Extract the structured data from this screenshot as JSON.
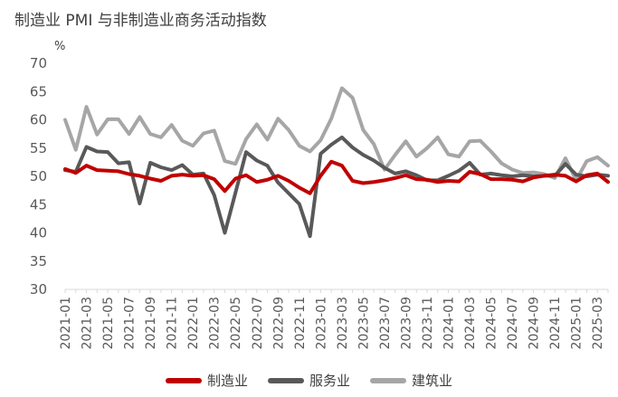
{
  "title": "制造业 PMI 与非制造业商务活动指数",
  "chart_data": {
    "type": "line",
    "unit_label": "%",
    "ylim": [
      30,
      70
    ],
    "y_ticks": [
      30,
      35,
      40,
      45,
      50,
      55,
      60,
      65,
      70
    ],
    "x": [
      "2021-01",
      "2021-02",
      "2021-03",
      "2021-04",
      "2021-05",
      "2021-06",
      "2021-07",
      "2021-08",
      "2021-09",
      "2021-10",
      "2021-11",
      "2021-12",
      "2022-01",
      "2022-02",
      "2022-03",
      "2022-04",
      "2022-05",
      "2022-06",
      "2022-07",
      "2022-08",
      "2022-09",
      "2022-10",
      "2022-11",
      "2022-12",
      "2023-01",
      "2023-02",
      "2023-03",
      "2023-04",
      "2023-05",
      "2023-06",
      "2023-07",
      "2023-08",
      "2023-09",
      "2023-10",
      "2023-11",
      "2023-12",
      "2024-01",
      "2024-02",
      "2024-03",
      "2024-04",
      "2024-05",
      "2024-06",
      "2024-07",
      "2024-08",
      "2024-09",
      "2024-10",
      "2024-11",
      "2024-12",
      "2025-01",
      "2025-02",
      "2025-03",
      "2025-04"
    ],
    "x_tick_labels": [
      "2021-01",
      "2021-03",
      "2021-05",
      "2021-07",
      "2021-09",
      "2021-11",
      "2022-01",
      "2022-03",
      "2022-05",
      "2022-07",
      "2022-09",
      "2022-11",
      "2023-01",
      "2023-03",
      "2023-05",
      "2023-07",
      "2023-09",
      "2023-11",
      "2024-01",
      "2024-03",
      "2024-05",
      "2024-07",
      "2024-09",
      "2024-11",
      "2025-01",
      "2025-03"
    ],
    "series": [
      {
        "name": "制造业",
        "color": "#c00000",
        "values": [
          51.3,
          50.6,
          51.9,
          51.1,
          51.0,
          50.9,
          50.4,
          50.1,
          49.6,
          49.2,
          50.1,
          50.3,
          50.1,
          50.2,
          49.5,
          47.4,
          49.6,
          50.2,
          49.0,
          49.4,
          50.1,
          49.2,
          48.0,
          47.0,
          50.1,
          52.6,
          51.9,
          49.2,
          48.8,
          49.0,
          49.3,
          49.7,
          50.2,
          49.5,
          49.4,
          49.0,
          49.2,
          49.1,
          50.8,
          50.4,
          49.5,
          49.5,
          49.4,
          49.1,
          49.8,
          50.1,
          50.3,
          50.1,
          49.1,
          50.2,
          50.5,
          49.0
        ]
      },
      {
        "name": "服务业",
        "color": "#595959",
        "values": [
          51.1,
          50.8,
          55.2,
          54.4,
          54.3,
          52.3,
          52.5,
          45.2,
          52.4,
          51.6,
          51.1,
          52.0,
          50.3,
          50.5,
          46.7,
          40.0,
          47.1,
          54.3,
          52.8,
          51.9,
          48.9,
          47.0,
          45.1,
          39.4,
          54.0,
          55.6,
          56.9,
          55.1,
          53.8,
          52.8,
          51.5,
          50.5,
          50.9,
          50.2,
          49.3,
          49.3,
          50.1,
          51.0,
          52.4,
          50.3,
          50.5,
          50.2,
          50.0,
          50.2,
          50.0,
          50.1,
          50.1,
          52.2,
          50.3,
          50.0,
          50.3,
          50.1
        ]
      },
      {
        "name": "建筑业",
        "color": "#a6a6a6",
        "values": [
          60.0,
          54.7,
          62.3,
          57.4,
          60.1,
          60.1,
          57.5,
          60.5,
          57.5,
          56.9,
          59.1,
          56.3,
          55.4,
          57.6,
          58.1,
          52.7,
          52.2,
          56.6,
          59.2,
          56.5,
          60.2,
          58.2,
          55.4,
          54.4,
          56.4,
          60.2,
          65.6,
          63.9,
          58.2,
          55.7,
          51.2,
          53.8,
          56.2,
          53.5,
          55.0,
          56.9,
          53.9,
          53.5,
          56.2,
          56.3,
          54.4,
          52.3,
          51.2,
          50.6,
          50.7,
          50.4,
          49.7,
          53.2,
          49.3,
          52.7,
          53.4,
          51.9
        ]
      }
    ]
  }
}
